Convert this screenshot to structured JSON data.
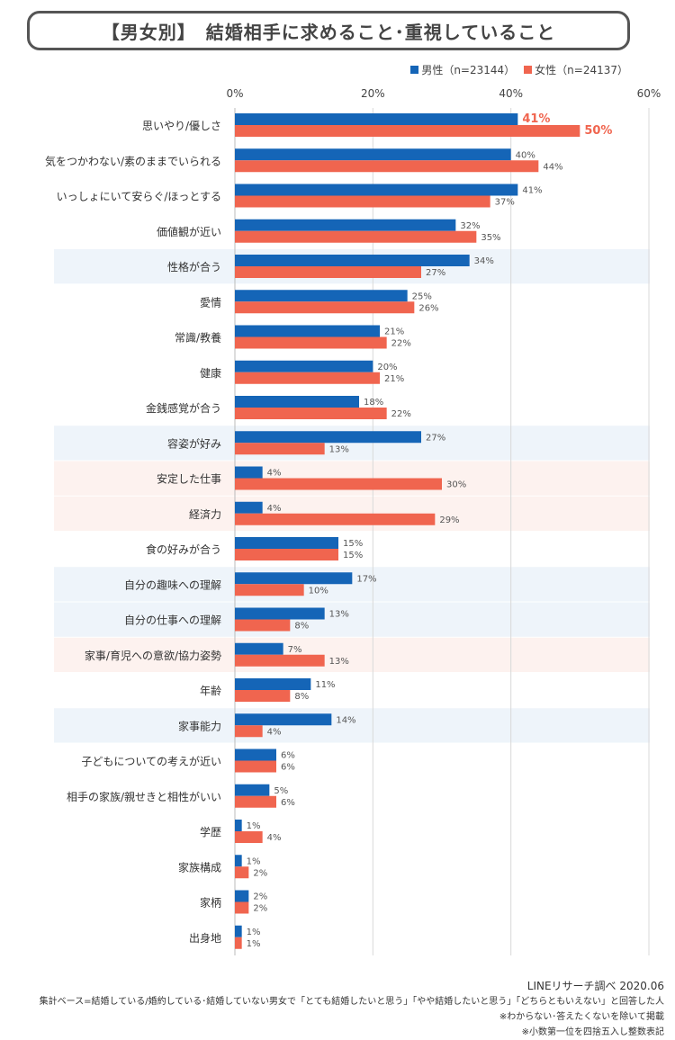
{
  "title": "【男女別】　結婚相手に求めること･重視していること",
  "legend": {
    "male": "男性（n=23144）",
    "female": "女性（n=24137）"
  },
  "colors": {
    "male": "#1565b7",
    "female": "#f0654f",
    "highlight_blue": "#eef4fa",
    "highlight_pink": "#fdf2ef",
    "grid": "#d9d9d9"
  },
  "chart_data": {
    "type": "bar",
    "orientation": "horizontal",
    "title": "【男女別】　結婚相手に求めること･重視していること",
    "xlim": [
      0,
      60
    ],
    "ticks": [
      "0%",
      "20%",
      "40%",
      "60%"
    ],
    "tick_values": [
      0,
      20,
      40,
      60
    ],
    "grid": true,
    "legend_position": "top-right",
    "categories": [
      "思いやり/優しさ",
      "気をつかわない/素のままでいられる",
      "いっしょにいて安らぐ/ほっとする",
      "価値観が近い",
      "性格が合う",
      "愛情",
      "常識/教養",
      "健康",
      "金銭感覚が合う",
      "容姿が好み",
      "安定した仕事",
      "経済力",
      "食の好みが合う",
      "自分の趣味への理解",
      "自分の仕事への理解",
      "家事/育児への意欲/協力姿勢",
      "年齢",
      "家事能力",
      "子どもについての考えが近い",
      "相手の家族/親せきと相性がいい",
      "学歴",
      "家族構成",
      "家柄",
      "出身地"
    ],
    "series": [
      {
        "name": "男性（n=23144）",
        "values": [
          41,
          40,
          41,
          32,
          34,
          25,
          21,
          20,
          18,
          27,
          4,
          4,
          15,
          17,
          13,
          7,
          11,
          14,
          6,
          5,
          1,
          1,
          2,
          1
        ]
      },
      {
        "name": "女性（n=24137）",
        "values": [
          50,
          44,
          37,
          35,
          27,
          26,
          22,
          21,
          22,
          13,
          30,
          29,
          15,
          10,
          8,
          13,
          8,
          4,
          6,
          6,
          4,
          2,
          2,
          1
        ]
      }
    ],
    "highlighted_rows": {
      "blue": [
        4,
        9,
        13,
        14,
        17
      ],
      "pink": [
        10,
        11,
        15
      ]
    }
  },
  "footer": {
    "source": "LINEリサーチ調べ 2020.06",
    "note1": "集計ベース=結婚している/婚約している･結婚していない男女で「とても結婚したいと思う」「やや結婚したいと思う」「どちらともいえない」と回答した人",
    "note2": "※わからない･答えたくないを除いて掲載",
    "note3": "※小数第一位を四捨五入し整数表記"
  }
}
